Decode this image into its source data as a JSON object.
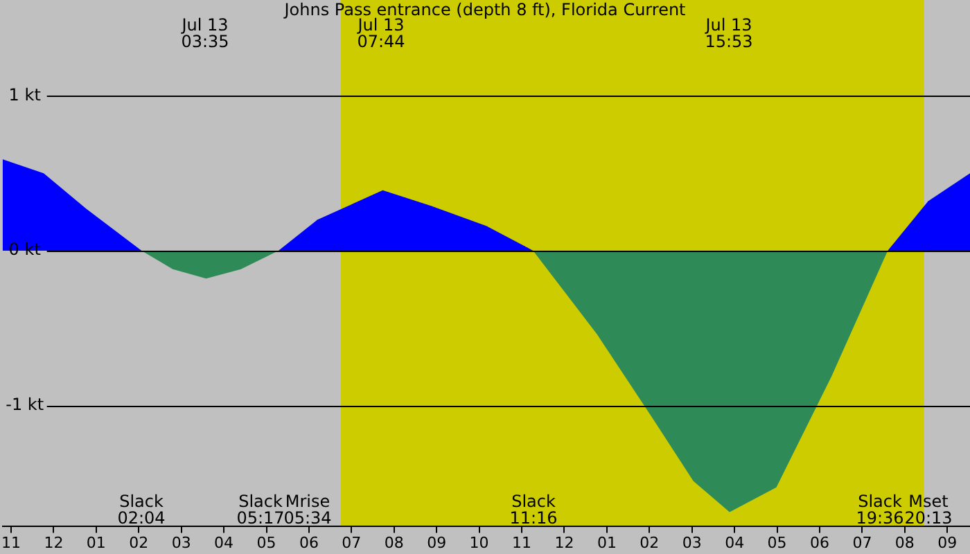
{
  "chart_data": {
    "type": "area",
    "title": "Johns Pass entrance (depth 8 ft), Florida Current",
    "xlim": [
      "--07-12T22:48",
      "--07-13T21:32"
    ],
    "xticks": [
      {
        "value": "--07-12T23:00",
        "label": "11"
      },
      {
        "value": "--07-13T00:00",
        "label": "12"
      },
      {
        "value": "--07-13T01:00",
        "label": "01"
      },
      {
        "value": "--07-13T02:00",
        "label": "02"
      },
      {
        "value": "--07-13T03:00",
        "label": "03"
      },
      {
        "value": "--07-13T04:00",
        "label": "04"
      },
      {
        "value": "--07-13T05:00",
        "label": "05"
      },
      {
        "value": "--07-13T06:00",
        "label": "06"
      },
      {
        "value": "--07-13T07:00",
        "label": "07"
      },
      {
        "value": "--07-13T08:00",
        "label": "08"
      },
      {
        "value": "--07-13T09:00",
        "label": "09"
      },
      {
        "value": "--07-13T10:00",
        "label": "10"
      },
      {
        "value": "--07-13T11:00",
        "label": "11"
      },
      {
        "value": "--07-13T12:00",
        "label": "12"
      },
      {
        "value": "--07-13T13:00",
        "label": "01"
      },
      {
        "value": "--07-13T14:00",
        "label": "02"
      },
      {
        "value": "--07-13T15:00",
        "label": "03"
      },
      {
        "value": "--07-13T16:00",
        "label": "04"
      },
      {
        "value": "--07-13T17:00",
        "label": "05"
      },
      {
        "value": "--07-13T18:00",
        "label": "06"
      },
      {
        "value": "--07-13T19:00",
        "label": "07"
      },
      {
        "value": "--07-13T20:00",
        "label": "08"
      },
      {
        "value": "--07-13T21:00",
        "label": "09"
      }
    ],
    "ylim": [
      -1.78,
      1.62
    ],
    "yticks": [
      {
        "value": 1,
        "label": "1 kt"
      },
      {
        "value": 0,
        "label": "0 kt"
      },
      {
        "value": -1,
        "label": "-1 kt"
      }
    ],
    "grid": "y",
    "series": [
      {
        "color": "#0000ff",
        "x": [
          "--07-12T22:48",
          "--07-12T23:46",
          "--07-13T00:46",
          "--07-13T02:04",
          "--07-13T03:35",
          "--07-13T05:17",
          "--07-13T06:12",
          "--07-13T07:44",
          "--07-13T08:52",
          "--07-13T10:10",
          "--07-13T11:16",
          "--07-13T15:53",
          "--07-13T19:36",
          "--07-13T20:33",
          "--07-13T21:32"
        ],
        "values": [
          0.59,
          0.5,
          0.27,
          0,
          null,
          0,
          0.2,
          0.39,
          0.29,
          0.16,
          0,
          null,
          0,
          0.32,
          0.5
        ]
      },
      {
        "color": "#2e8b57",
        "x": [
          "--07-13T02:04",
          "--07-13T02:48",
          "--07-13T03:35",
          "--07-13T04:24",
          "--07-13T05:17",
          "--07-13T07:44",
          "--07-13T11:16",
          "--07-13T12:46",
          "--07-13T14:04",
          "--07-13T15:02",
          "--07-13T15:53",
          "--07-13T16:59",
          "--07-13T18:17",
          "--07-13T19:36"
        ],
        "values": [
          0,
          -0.12,
          -0.18,
          -0.12,
          0,
          null,
          0,
          -0.54,
          -1.08,
          -1.49,
          -1.69,
          -1.53,
          -0.81,
          0
        ]
      }
    ],
    "bands": [
      {
        "axis": "x",
        "from": "--07-13T06:45",
        "to": "--07-13T20:27",
        "color": "#cccc00"
      }
    ],
    "annotations": [
      "Jul 13\n03:35",
      "Jul 13\n07:44",
      "Jul 13\n15:53",
      "Slack\n02:04",
      "Slack\n05:17",
      "Mrise\n05:34",
      "Slack\n11:16",
      "Slack\n19:36",
      "Mset\n20:13"
    ]
  }
}
